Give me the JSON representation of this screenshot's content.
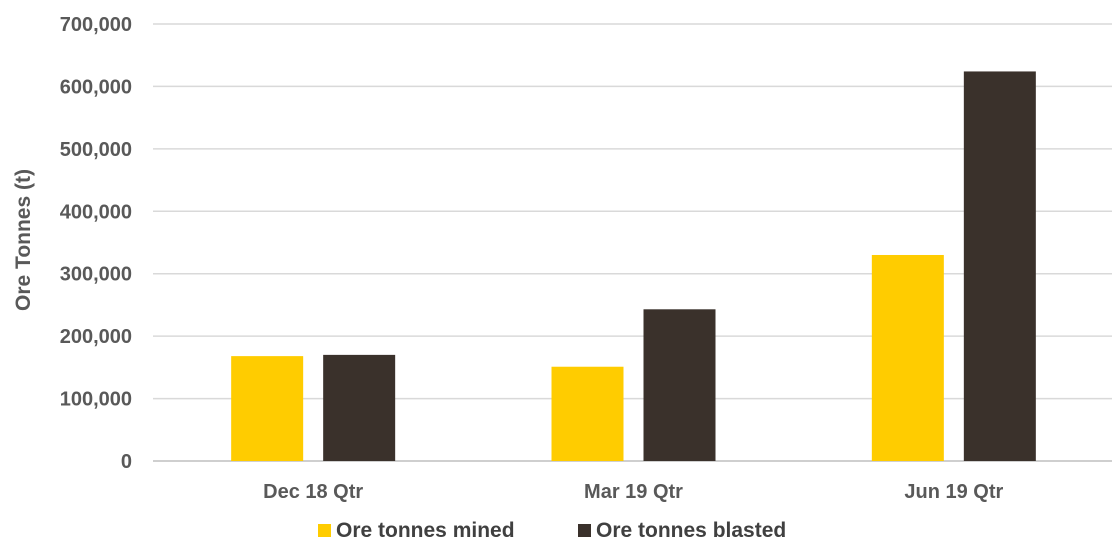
{
  "chart_data": {
    "type": "bar",
    "categories": [
      "Dec 18 Qtr",
      "Mar 19 Qtr",
      "Jun 19 Qtr"
    ],
    "series": [
      {
        "name": "Ore tonnes mined",
        "values": [
          168000,
          151000,
          330000
        ],
        "color": "#FFCC00"
      },
      {
        "name": "Ore tonnes blasted",
        "values": [
          170000,
          243000,
          624000
        ],
        "color": "#3A312B"
      }
    ],
    "ylabel": "Ore Tonnes (t)",
    "ylim": [
      0,
      700000
    ],
    "yticks": [
      "0",
      "100,000",
      "200,000",
      "300,000",
      "400,000",
      "500,000",
      "600,000",
      "700,000"
    ],
    "grid": true,
    "legend_position": "bottom"
  }
}
